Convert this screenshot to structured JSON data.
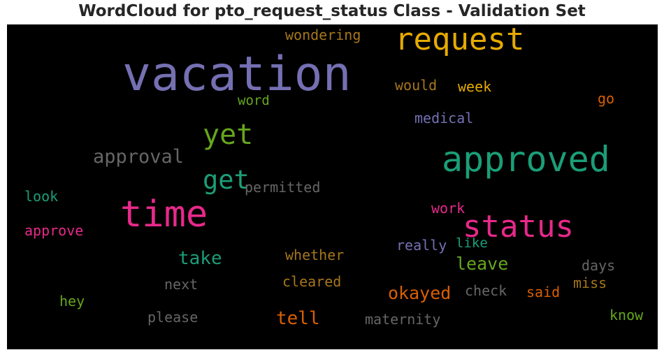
{
  "title": "WordCloud for pto_request_status Class - Validation Set",
  "colors": {
    "background": "#000000",
    "title": "#262626"
  },
  "words": [
    {
      "text": "vacation",
      "color": "#7570b3"
    },
    {
      "text": "request",
      "color": "#e6ab02"
    },
    {
      "text": "approved",
      "color": "#1b9e77"
    },
    {
      "text": "time",
      "color": "#e7298a"
    },
    {
      "text": "status",
      "color": "#e7298a"
    },
    {
      "text": "yet",
      "color": "#66a61e"
    },
    {
      "text": "get",
      "color": "#1b9e77"
    },
    {
      "text": "approval",
      "color": "#666666"
    },
    {
      "text": "take",
      "color": "#1b9e77"
    },
    {
      "text": "leave",
      "color": "#66a61e"
    },
    {
      "text": "okayed",
      "color": "#d95f02"
    },
    {
      "text": "tell",
      "color": "#d95f02"
    },
    {
      "text": "wondering",
      "color": "#a6761d"
    },
    {
      "text": "would",
      "color": "#a6761d"
    },
    {
      "text": "week",
      "color": "#e6ab02"
    },
    {
      "text": "word",
      "color": "#66a61e"
    },
    {
      "text": "go",
      "color": "#d95f02"
    },
    {
      "text": "medical",
      "color": "#7570b3"
    },
    {
      "text": "permitted",
      "color": "#666666"
    },
    {
      "text": "look",
      "color": "#1b9e77"
    },
    {
      "text": "work",
      "color": "#e7298a"
    },
    {
      "text": "approve",
      "color": "#e7298a"
    },
    {
      "text": "really",
      "color": "#7570b3"
    },
    {
      "text": "like",
      "color": "#1b9e77"
    },
    {
      "text": "whether",
      "color": "#a6761d"
    },
    {
      "text": "days",
      "color": "#666666"
    },
    {
      "text": "next",
      "color": "#666666"
    },
    {
      "text": "cleared",
      "color": "#a6761d"
    },
    {
      "text": "check",
      "color": "#666666"
    },
    {
      "text": "said",
      "color": "#d95f02"
    },
    {
      "text": "miss",
      "color": "#a6761d"
    },
    {
      "text": "hey",
      "color": "#66a61e"
    },
    {
      "text": "please",
      "color": "#666666"
    },
    {
      "text": "maternity",
      "color": "#666666"
    },
    {
      "text": "know",
      "color": "#66a61e"
    }
  ]
}
